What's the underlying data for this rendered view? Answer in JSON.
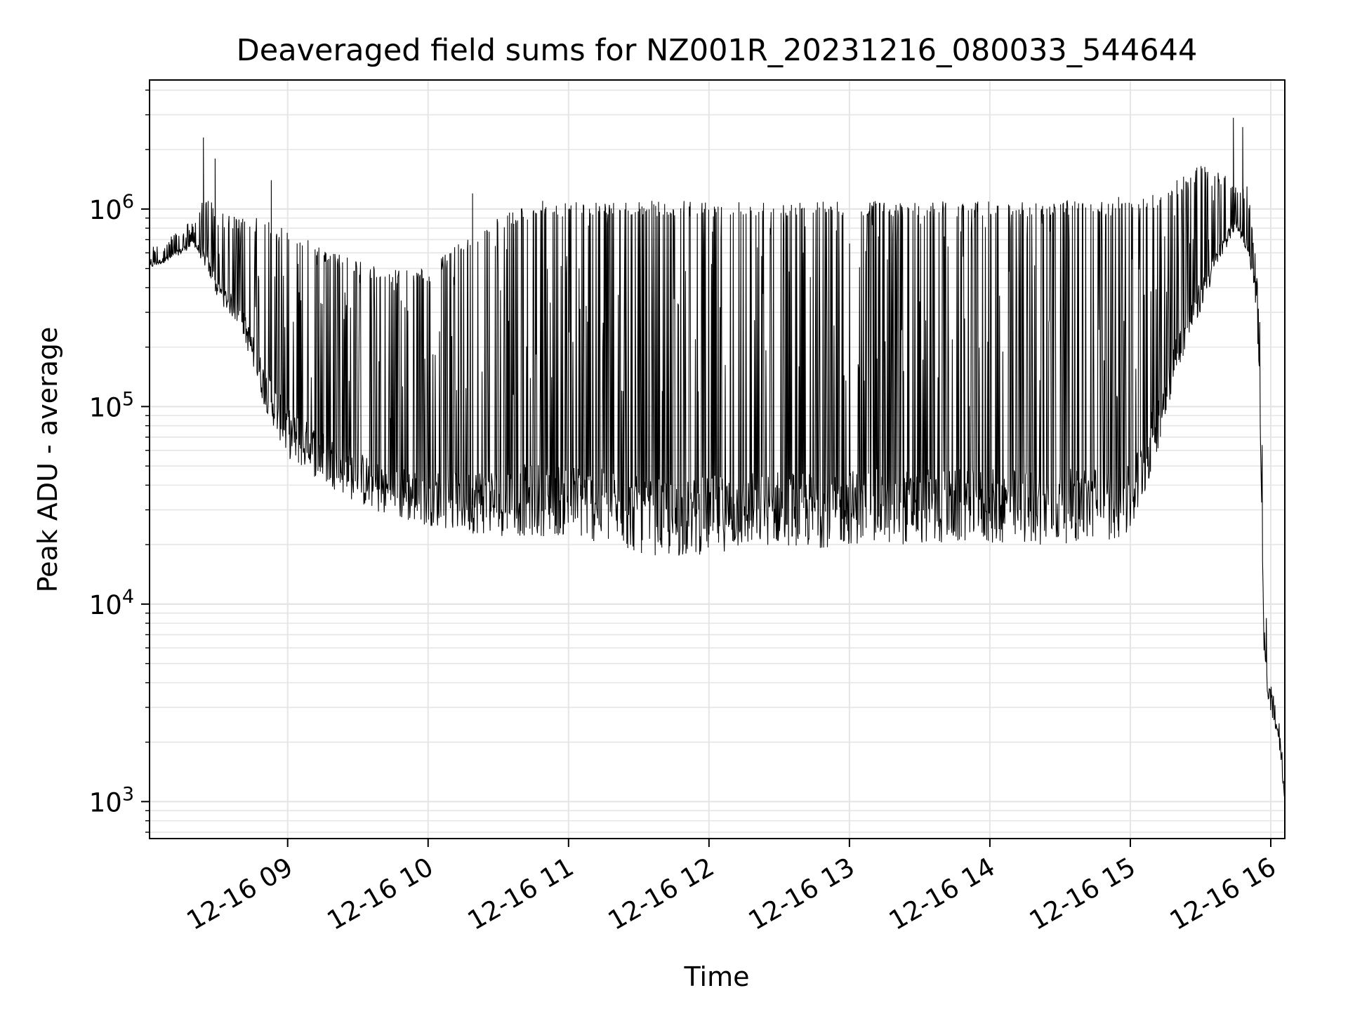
{
  "chart_data": {
    "type": "line",
    "title": "Deaveraged field sums for NZ001R_20231216_080033_544644",
    "xlabel": "Time",
    "ylabel": "Peak ADU - average",
    "yscale": "log",
    "ylim": [
      650,
      4500000
    ],
    "xlim": [
      "2023-12-16 08:01",
      "2023-12-16 16:06"
    ],
    "grid": true,
    "line_color": "#000000",
    "grid_color": "#e5e5e5",
    "x_tick_labels": [
      "12-16 09",
      "12-16 10",
      "12-16 11",
      "12-16 12",
      "12-16 13",
      "12-16 14",
      "12-16 15",
      "12-16 16"
    ],
    "y_tick_labels": [
      {
        "base": "10",
        "exp": "3"
      },
      {
        "base": "10",
        "exp": "4"
      },
      {
        "base": "10",
        "exp": "5"
      },
      {
        "base": "10",
        "exp": "6"
      }
    ],
    "series": [
      {
        "x": [
          "2023-12-16 08:01",
          "2023-12-16 08:10",
          "2023-12-16 08:20",
          "2023-12-16 08:25",
          "2023-12-16 08:30",
          "2023-12-16 08:40",
          "2023-12-16 08:50",
          "2023-12-16 09:00",
          "2023-12-16 09:10",
          "2023-12-16 09:20",
          "2023-12-16 09:30",
          "2023-12-16 09:40",
          "2023-12-16 09:50",
          "2023-12-16 10:00",
          "2023-12-16 10:15",
          "2023-12-16 10:30",
          "2023-12-16 10:45",
          "2023-12-16 11:00",
          "2023-12-16 11:15",
          "2023-12-16 11:30",
          "2023-12-16 11:45",
          "2023-12-16 12:00",
          "2023-12-16 12:15",
          "2023-12-16 12:30",
          "2023-12-16 12:45",
          "2023-12-16 13:00",
          "2023-12-16 13:15",
          "2023-12-16 13:30",
          "2023-12-16 13:45",
          "2023-12-16 14:00",
          "2023-12-16 14:15",
          "2023-12-16 14:30",
          "2023-12-16 14:45",
          "2023-12-16 15:00",
          "2023-12-16 15:10",
          "2023-12-16 15:20",
          "2023-12-16 15:30",
          "2023-12-16 15:40",
          "2023-12-16 15:45",
          "2023-12-16 15:50",
          "2023-12-16 15:53",
          "2023-12-16 15:55",
          "2023-12-16 15:57",
          "2023-12-16 15:59",
          "2023-12-16 16:01",
          "2023-12-16 16:03",
          "2023-12-16 16:06"
        ],
        "low": [
          500000,
          550000,
          650000,
          500000,
          350000,
          250000,
          100000,
          55000,
          45000,
          38000,
          32000,
          28000,
          26000,
          25000,
          23000,
          22000,
          22000,
          22000,
          20000,
          18000,
          17000,
          18000,
          19000,
          20000,
          19000,
          20000,
          20000,
          20000,
          20000,
          20000,
          20000,
          20000,
          21000,
          21000,
          50000,
          150000,
          300000,
          600000,
          800000,
          600000,
          400000,
          150000,
          6000,
          3000,
          2500,
          2200,
          1000
        ],
        "high": [
          650000,
          750000,
          900000,
          1200000,
          1000000,
          900000,
          900000,
          800000,
          700000,
          600000,
          550000,
          500000,
          500000,
          500000,
          700000,
          900000,
          1100000,
          1100000,
          1100000,
          1100000,
          1100000,
          1100000,
          1100000,
          1100000,
          1100000,
          1100000,
          1100000,
          1100000,
          1100000,
          1100000,
          1100000,
          1100000,
          1100000,
          1100000,
          1200000,
          1400000,
          1700000,
          1500000,
          1400000,
          1300000,
          700000,
          400000,
          30000,
          4000,
          4000,
          3000,
          1500
        ],
        "spikes": [
          {
            "x": "2023-12-16 08:24",
            "y": 2300000
          },
          {
            "x": "2023-12-16 08:29",
            "y": 1800000
          },
          {
            "x": "2023-12-16 08:53",
            "y": 1400000
          },
          {
            "x": "2023-12-16 10:19",
            "y": 1200000
          },
          {
            "x": "2023-12-16 14:55",
            "y": 1150000
          },
          {
            "x": "2023-12-16 15:44",
            "y": 2900000
          },
          {
            "x": "2023-12-16 15:48",
            "y": 2600000
          }
        ]
      }
    ]
  }
}
